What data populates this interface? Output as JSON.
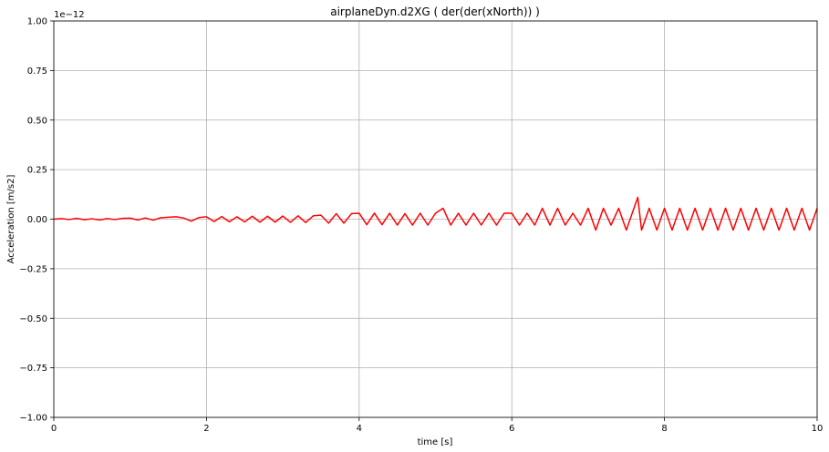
{
  "chart_data": {
    "type": "line",
    "title": "airplaneDyn.d2XG ( der(der(xNorth)) )",
    "xlabel": "time [s]",
    "ylabel": "Acceleration [m/s2]",
    "y_offset_label": "1e−12",
    "xlim": [
      0,
      10
    ],
    "ylim": [
      -1.0,
      1.0
    ],
    "y_scale_factor": 1e-12,
    "xticks": [
      0,
      2,
      4,
      6,
      8,
      10
    ],
    "xtick_labels": [
      "0",
      "2",
      "4",
      "6",
      "8",
      "10"
    ],
    "yticks": [
      1.0,
      0.75,
      0.5,
      0.25,
      0.0,
      -0.25,
      -0.5,
      -0.75,
      -1.0
    ],
    "ytick_labels": [
      "1.00",
      "0.75",
      "0.50",
      "0.25",
      "0.00",
      "−0.25",
      "−0.50",
      "−0.75",
      "−1.00"
    ],
    "grid": true,
    "series": [
      {
        "color": "#ff0000",
        "x": [
          0,
          0.1,
          0.2,
          0.3,
          0.4,
          0.5,
          0.6,
          0.7,
          0.8,
          0.9,
          1.0,
          1.1,
          1.2,
          1.3,
          1.4,
          1.5,
          1.6,
          1.7,
          1.8,
          1.9,
          2.0,
          2.1,
          2.2,
          2.3,
          2.4,
          2.5,
          2.6,
          2.7,
          2.8,
          2.9,
          3.0,
          3.1,
          3.2,
          3.3,
          3.4,
          3.5,
          3.6,
          3.7,
          3.8,
          3.9,
          4.0,
          4.1,
          4.2,
          4.3,
          4.4,
          4.5,
          4.6,
          4.7,
          4.8,
          4.9,
          5.0,
          5.1,
          5.2,
          5.3,
          5.4,
          5.5,
          5.6,
          5.7,
          5.8,
          5.9,
          6.0,
          6.1,
          6.2,
          6.3,
          6.4,
          6.5,
          6.6,
          6.7,
          6.8,
          6.9,
          7.0,
          7.1,
          7.2,
          7.3,
          7.4,
          7.5,
          7.6,
          7.65,
          7.7,
          7.8,
          7.9,
          8.0,
          8.1,
          8.2,
          8.3,
          8.4,
          8.5,
          8.6,
          8.7,
          8.8,
          8.9,
          9.0,
          9.1,
          9.2,
          9.3,
          9.4,
          9.5,
          9.6,
          9.7,
          9.8,
          9.9,
          10.0
        ],
        "values": [
          0.0,
          0.003,
          -0.002,
          0.004,
          -0.003,
          0.002,
          -0.004,
          0.003,
          -0.002,
          0.004,
          0.005,
          -0.004,
          0.006,
          -0.005,
          0.007,
          0.01,
          0.012,
          0.006,
          -0.01,
          0.008,
          0.012,
          -0.012,
          0.013,
          -0.013,
          0.012,
          -0.014,
          0.015,
          -0.015,
          0.015,
          -0.015,
          0.016,
          -0.016,
          0.017,
          -0.017,
          0.017,
          0.02,
          -0.02,
          0.028,
          -0.02,
          0.028,
          0.03,
          -0.028,
          0.03,
          -0.028,
          0.03,
          -0.03,
          0.028,
          -0.03,
          0.03,
          -0.03,
          0.03,
          0.055,
          -0.03,
          0.03,
          -0.03,
          0.03,
          -0.03,
          0.03,
          -0.03,
          0.03,
          0.03,
          -0.03,
          0.03,
          -0.03,
          0.055,
          -0.03,
          0.055,
          -0.03,
          0.03,
          -0.03,
          0.055,
          -0.055,
          0.055,
          -0.03,
          0.055,
          -0.055,
          0.055,
          0.11,
          -0.055,
          0.055,
          -0.055,
          0.055,
          -0.055,
          0.055,
          -0.055,
          0.055,
          -0.055,
          0.055,
          -0.055,
          0.055,
          -0.055,
          0.055,
          -0.055,
          0.055,
          -0.055,
          0.055,
          -0.055,
          0.055,
          -0.055,
          0.055,
          -0.055,
          0.055
        ]
      }
    ]
  }
}
